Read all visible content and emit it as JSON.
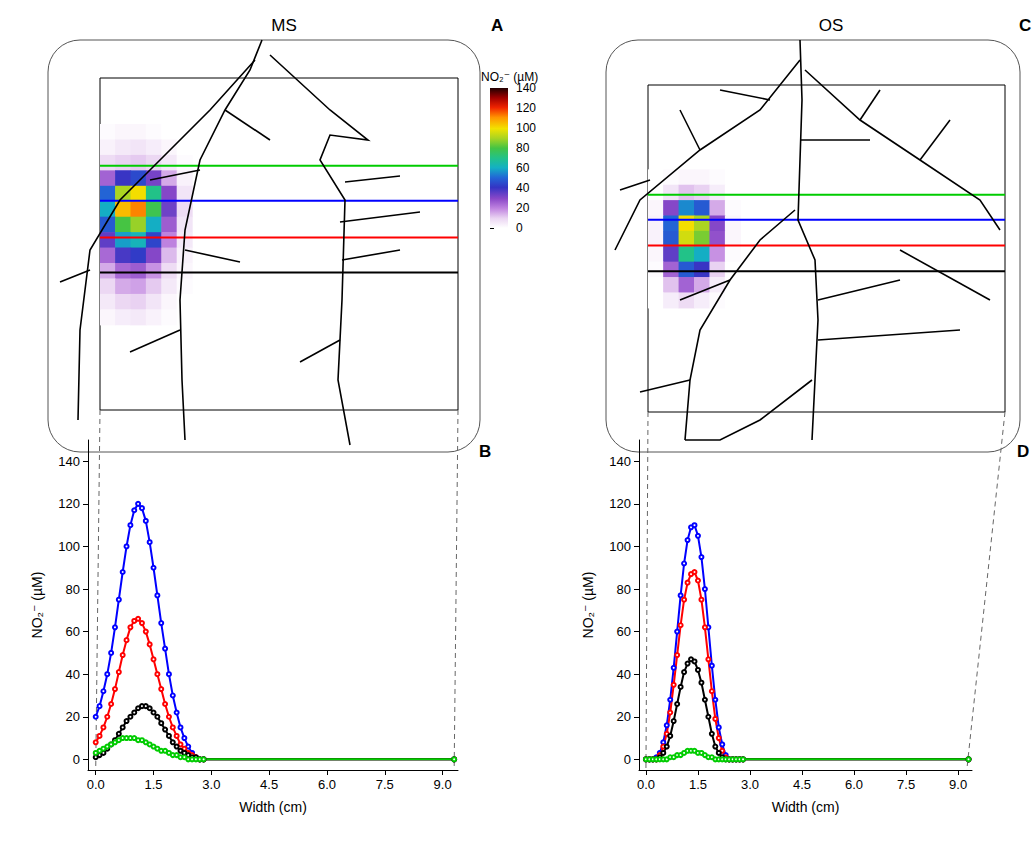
{
  "chart_data": [
    {
      "type": "heatmap",
      "panel": "A",
      "title": "MS",
      "xlim": [
        0,
        9.3
      ],
      "ylim": [
        0,
        8.6
      ],
      "tick_labels": false,
      "heatmap": {
        "x": [
          0.2,
          0.6,
          1.0,
          1.4,
          1.8,
          2.2
        ],
        "y": [
          1.4,
          1.8,
          2.2,
          2.6,
          3.0,
          3.4,
          3.8,
          4.2,
          4.6,
          5.0,
          5.4,
          5.8,
          6.2
        ],
        "values": [
          [
            1,
            2,
            2,
            1,
            0,
            0
          ],
          [
            3,
            5,
            6,
            4,
            2,
            0
          ],
          [
            8,
            10,
            11,
            9,
            5,
            1
          ],
          [
            25,
            40,
            45,
            32,
            15,
            3
          ],
          [
            50,
            90,
            100,
            70,
            30,
            6
          ],
          [
            60,
            105,
            112,
            78,
            33,
            8
          ],
          [
            48,
            80,
            88,
            60,
            26,
            6
          ],
          [
            35,
            58,
            62,
            44,
            20,
            5
          ],
          [
            24,
            38,
            42,
            30,
            13,
            3
          ],
          [
            15,
            24,
            26,
            18,
            8,
            2
          ],
          [
            9,
            15,
            16,
            11,
            5,
            1
          ],
          [
            5,
            9,
            10,
            6,
            2,
            0
          ],
          [
            2,
            4,
            5,
            3,
            1,
            0
          ]
        ]
      },
      "transects": [
        {
          "color": "#00cc00",
          "y": 2.27
        },
        {
          "color": "#0000ff",
          "y": 3.18
        },
        {
          "color": "#ff0000",
          "y": 4.13
        },
        {
          "color": "#000000",
          "y": 5.04
        }
      ],
      "colorbar": {
        "label": "NO₂⁻ (µM)",
        "range": [
          0,
          140
        ],
        "ticks": [
          0,
          20,
          40,
          60,
          80,
          100,
          120,
          140
        ]
      }
    },
    {
      "type": "heatmap",
      "panel": "C",
      "title": "OS",
      "xlim": [
        0,
        9.25
      ],
      "ylim": [
        0,
        8.5
      ],
      "tick_labels": false,
      "heatmap": {
        "x": [
          0.2,
          0.6,
          1.0,
          1.4,
          1.8,
          2.2
        ],
        "y": [
          2.4,
          2.8,
          3.2,
          3.6,
          4.0,
          4.4,
          4.8,
          5.2,
          5.6
        ],
        "values": [
          [
            0,
            1,
            2,
            2,
            1,
            0
          ],
          [
            0,
            6,
            12,
            10,
            4,
            0
          ],
          [
            2,
            30,
            55,
            48,
            15,
            1
          ],
          [
            3,
            50,
            100,
            90,
            30,
            2
          ],
          [
            3,
            48,
            95,
            85,
            28,
            2
          ],
          [
            2,
            35,
            70,
            60,
            18,
            1
          ],
          [
            1,
            25,
            48,
            40,
            10,
            0
          ],
          [
            0,
            12,
            25,
            15,
            4,
            0
          ],
          [
            0,
            4,
            8,
            4,
            1,
            0
          ]
        ]
      },
      "transects": [
        {
          "color": "#00cc00",
          "y": 2.85
        },
        {
          "color": "#0000ff",
          "y": 3.5
        },
        {
          "color": "#ff0000",
          "y": 4.17
        },
        {
          "color": "#000000",
          "y": 4.84
        }
      ]
    },
    {
      "type": "line",
      "panel": "B",
      "xlabel": "Width (cm)",
      "ylabel": "NO₂⁻ (µM)",
      "xlim": [
        -0.2,
        9.4
      ],
      "ylim": [
        -5,
        150
      ],
      "xticks": [
        {
          "value": 0,
          "label": "0.0"
        },
        1.5,
        {
          "value": 3,
          "label": "3.0"
        },
        4.5,
        {
          "value": 6,
          "label": "6.0"
        },
        7.5,
        {
          "value": 9,
          "label": "9.0"
        }
      ],
      "yticks": [
        0,
        20,
        40,
        60,
        80,
        100,
        120,
        140
      ],
      "x": [
        0,
        0.1,
        0.2,
        0.3,
        0.4,
        0.5,
        0.6,
        0.7,
        0.8,
        0.9,
        1.0,
        1.1,
        1.2,
        1.3,
        1.4,
        1.5,
        1.6,
        1.7,
        1.8,
        1.9,
        2.0,
        2.1,
        2.2,
        2.3,
        2.4,
        2.5,
        2.6,
        2.7,
        2.8,
        9.3
      ],
      "series": [
        {
          "color": "#0000ff",
          "marker": "circle",
          "values": [
            20,
            25,
            32,
            40,
            50,
            62,
            75,
            88,
            100,
            110,
            117,
            120,
            118,
            112,
            102,
            90,
            77,
            64,
            52,
            40,
            30,
            22,
            15,
            10,
            6,
            3,
            1,
            0,
            0,
            0
          ]
        },
        {
          "color": "#ff0000",
          "marker": "circle",
          "values": [
            8,
            11,
            15,
            20,
            26,
            33,
            41,
            49,
            56,
            62,
            65,
            66,
            64,
            60,
            54,
            47,
            40,
            33,
            26,
            20,
            15,
            11,
            7,
            5,
            3,
            2,
            1,
            0,
            0,
            0
          ]
        },
        {
          "color": "#000000",
          "marker": "circle",
          "values": [
            1,
            2,
            3,
            5,
            7,
            9,
            12,
            15,
            18,
            20,
            22,
            24,
            25,
            25,
            24,
            22,
            20,
            17,
            14,
            11,
            8,
            6,
            4,
            3,
            2,
            1,
            1,
            0,
            0,
            0
          ]
        },
        {
          "color": "#00cc00",
          "marker": "circle",
          "values": [
            3,
            4,
            5,
            6,
            7,
            8,
            9,
            10,
            10,
            10,
            10,
            9,
            9,
            8,
            7,
            6,
            5,
            4,
            4,
            3,
            2,
            2,
            1,
            1,
            0,
            0,
            0,
            0,
            0,
            0
          ]
        }
      ]
    },
    {
      "type": "line",
      "panel": "D",
      "xlabel": "Width (cm)",
      "ylabel": "NO₂⁻ (µM)",
      "xlim": [
        -0.2,
        9.4
      ],
      "ylim": [
        -5,
        150
      ],
      "xticks": [
        {
          "value": 0,
          "label": "0.0"
        },
        1.5,
        {
          "value": 3,
          "label": "3.0"
        },
        4.5,
        {
          "value": 6,
          "label": "6.0"
        },
        7.5,
        {
          "value": 9,
          "label": "9.0"
        }
      ],
      "yticks": [
        0,
        20,
        40,
        60,
        80,
        100,
        120,
        140
      ],
      "x": [
        0,
        0.1,
        0.2,
        0.3,
        0.4,
        0.5,
        0.6,
        0.7,
        0.8,
        0.9,
        1.0,
        1.1,
        1.2,
        1.3,
        1.4,
        1.5,
        1.6,
        1.7,
        1.8,
        1.9,
        2.0,
        2.1,
        2.2,
        2.3,
        2.4,
        2.5,
        2.6,
        2.7,
        2.8,
        9.3
      ],
      "series": [
        {
          "color": "#0000ff",
          "marker": "circle",
          "values": [
            0,
            0,
            0,
            1,
            3,
            8,
            16,
            28,
            43,
            60,
            77,
            92,
            103,
            109,
            110,
            105,
            95,
            80,
            62,
            44,
            28,
            15,
            7,
            2,
            0,
            0,
            0,
            0,
            0,
            0
          ]
        },
        {
          "color": "#ff0000",
          "marker": "circle",
          "values": [
            0,
            0,
            0,
            0,
            2,
            6,
            12,
            22,
            35,
            49,
            63,
            75,
            83,
            87,
            88,
            84,
            75,
            62,
            47,
            32,
            19,
            10,
            4,
            1,
            0,
            0,
            0,
            0,
            0,
            0
          ]
        },
        {
          "color": "#000000",
          "marker": "circle",
          "values": [
            0,
            0,
            0,
            0,
            1,
            3,
            6,
            11,
            18,
            26,
            34,
            41,
            45,
            47,
            46,
            42,
            36,
            28,
            20,
            12,
            6,
            3,
            1,
            0,
            0,
            0,
            0,
            0,
            0,
            0
          ]
        },
        {
          "color": "#00cc00",
          "marker": "circle",
          "values": [
            0,
            0,
            0,
            0,
            0,
            0,
            0,
            1,
            1,
            2,
            2,
            3,
            4,
            4,
            4,
            3,
            3,
            2,
            1,
            1,
            0,
            0,
            0,
            0,
            0,
            0,
            0,
            0,
            0,
            0
          ]
        }
      ]
    }
  ]
}
